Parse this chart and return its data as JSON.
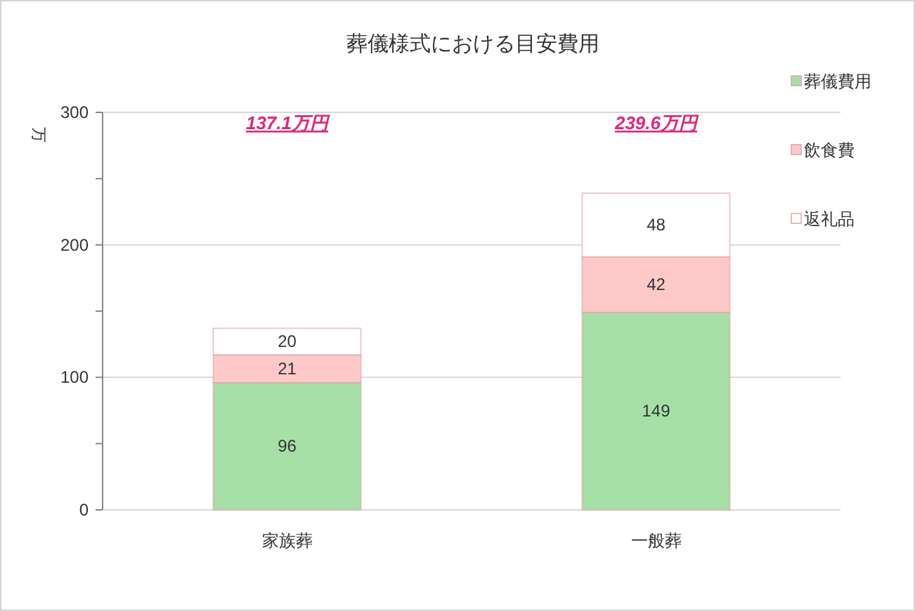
{
  "chart_data": {
    "type": "bar",
    "title": "葬儀様式における目安費用",
    "ylabel": "万",
    "categories": [
      "家族葬",
      "一般葬"
    ],
    "stacked": true,
    "series": [
      {
        "name": "葬儀費用",
        "color": "#a6e0a6",
        "values": [
          96,
          149
        ]
      },
      {
        "name": "飲食費",
        "color": "#ffc9c9",
        "values": [
          21,
          42
        ]
      },
      {
        "name": "返礼品",
        "color": "#ffffff",
        "values": [
          20,
          48
        ]
      }
    ],
    "ylim": [
      0,
      300
    ],
    "yticks": [
      0,
      {
        "value": 50,
        "label": null
      },
      100,
      {
        "value": 150,
        "label": null
      },
      200,
      {
        "value": 250,
        "label": null
      },
      300
    ],
    "grid": "y",
    "legend": "right",
    "data_labels": true,
    "annotations": [
      "137.1万円",
      "239.6万円"
    ]
  }
}
